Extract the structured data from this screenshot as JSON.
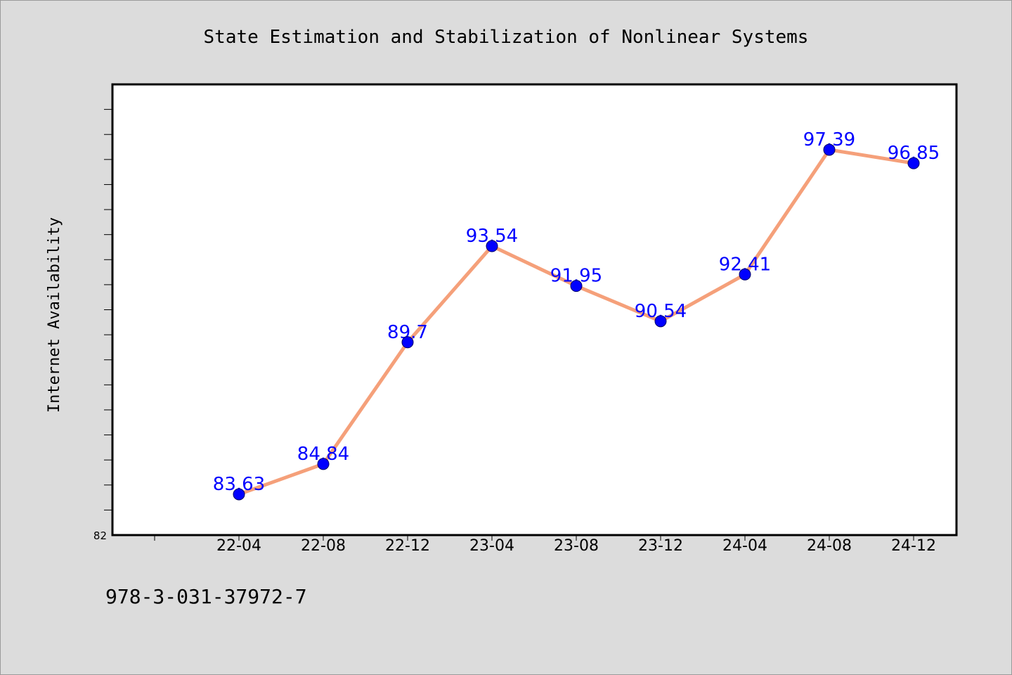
{
  "chart_data": {
    "type": "line",
    "title": "State Estimation and Stabilization of Nonlinear Systems",
    "xlabel": "",
    "ylabel": "Internet Availability",
    "categories": [
      "22-04",
      "22-08",
      "22-12",
      "23-04",
      "23-08",
      "23-12",
      "24-04",
      "24-08",
      "24-12"
    ],
    "series": [
      {
        "values": [
          83.63,
          84.84,
          89.7,
          93.54,
          91.95,
          90.54,
          92.41,
          97.39,
          96.85
        ]
      }
    ],
    "data_labels": [
      "83.63",
      "84.84",
      "89.7",
      "93.54",
      "91.95",
      "90.54",
      "92.41",
      "97.39",
      "96.85"
    ],
    "ylim": [
      82,
      100
    ],
    "yticks": [
      82
    ],
    "ytick_labels": [
      "82"
    ],
    "grid": false,
    "colors": {
      "line": "#f5a07a",
      "marker": "#0000ff",
      "label": "#0000ff",
      "plot_bg": "#ffffff",
      "page_bg": "#dcdcdc"
    }
  },
  "footer": {
    "isbn": "978-3-031-37972-7"
  }
}
